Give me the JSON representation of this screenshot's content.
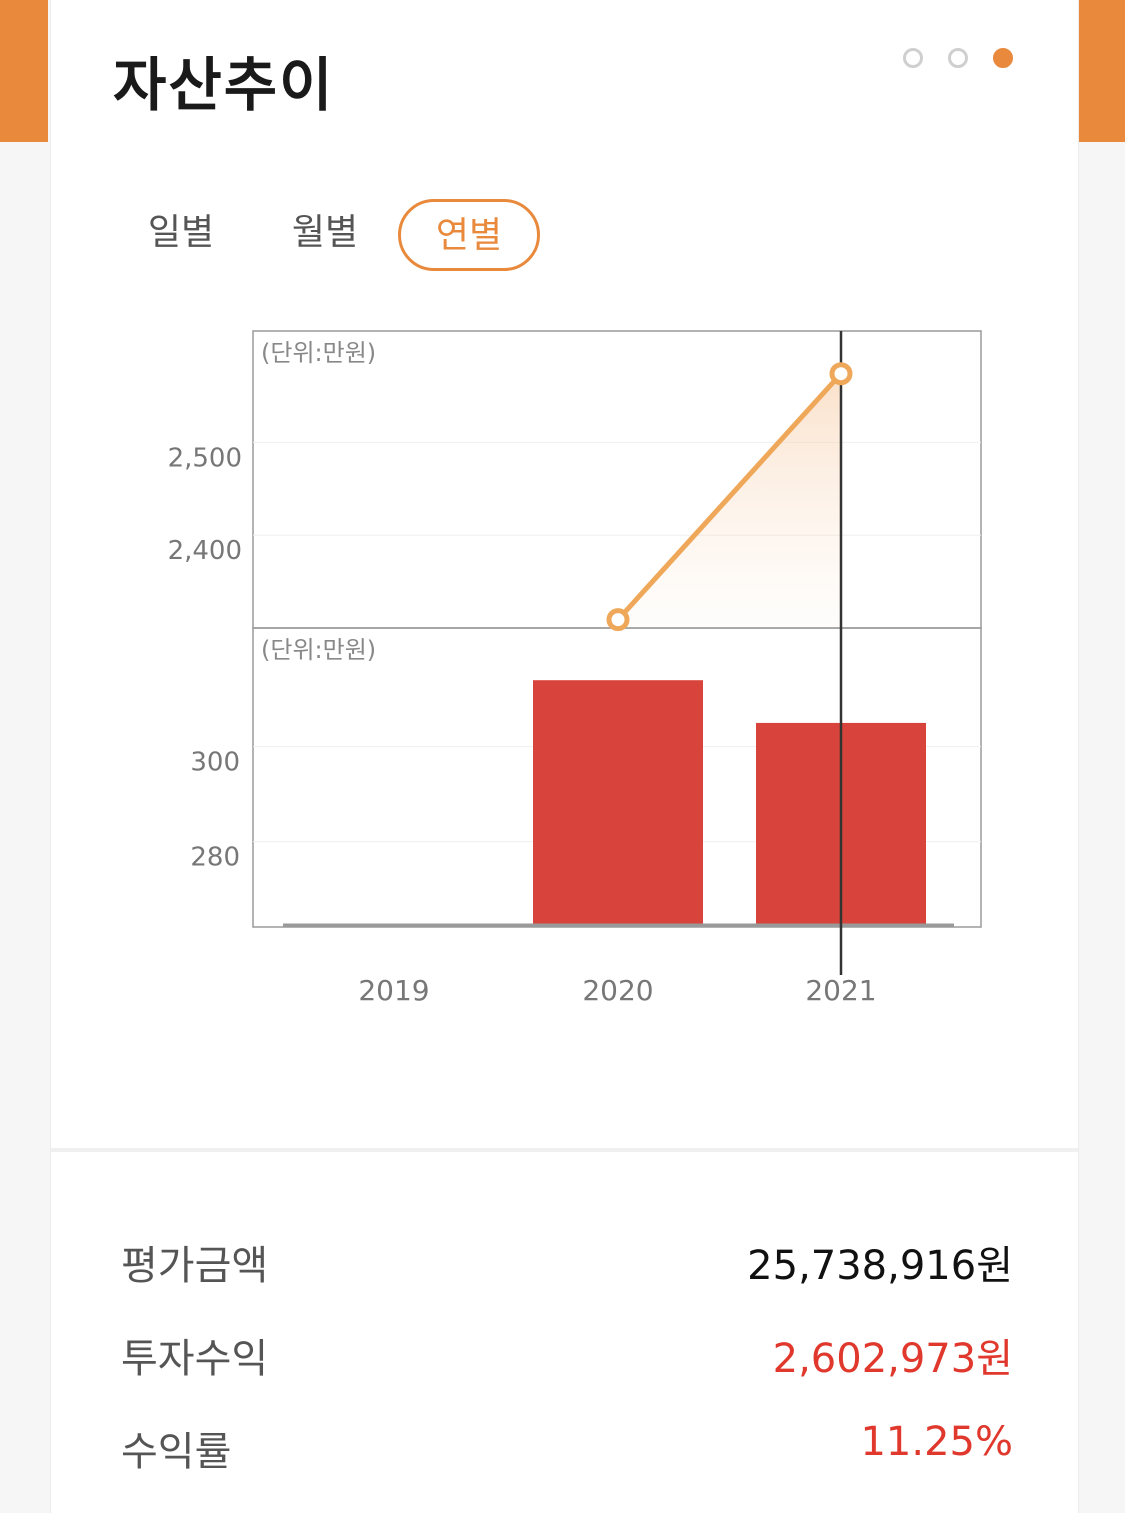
{
  "header": {
    "title": "자산추이",
    "page_indicator": {
      "count": 3,
      "active_index": 2
    }
  },
  "tabs": [
    {
      "label": "일별",
      "active": false
    },
    {
      "label": "월별",
      "active": false
    },
    {
      "label": "연별",
      "active": true
    }
  ],
  "chart_data": [
    {
      "type": "line",
      "unit_label": "(단위:만원)",
      "x": [
        "2019",
        "2020",
        "2021"
      ],
      "values": [
        null,
        2309,
        2574
      ],
      "yticks": [
        "2,400",
        "2,500"
      ],
      "ytick_values": [
        2400,
        2500
      ],
      "ylim": [
        2300,
        2620
      ],
      "area_fill": true,
      "selected_x": "2021",
      "colors": {
        "line": "#efa85a",
        "marker_fill": "#ffffff"
      }
    },
    {
      "type": "bar",
      "unit_label": "(단위:만원)",
      "categories": [
        "2019",
        "2020",
        "2021"
      ],
      "values": [
        262,
        314,
        305
      ],
      "yticks": [
        "280",
        "300"
      ],
      "ytick_values": [
        280,
        300
      ],
      "ylim": [
        262,
        325
      ],
      "selected_x": "2021",
      "colors": {
        "bar": "#d8443b"
      }
    }
  ],
  "summary": [
    {
      "label": "평가금액",
      "value": "25,738,916원",
      "highlight": false
    },
    {
      "label": "투자수익",
      "value": "2,602,973원",
      "highlight": true
    },
    {
      "label": "수익률",
      "value": "11.25%",
      "highlight": true
    }
  ],
  "colors": {
    "accent": "#e8893c",
    "bar": "#d8443b",
    "positive": "#e0382c"
  }
}
